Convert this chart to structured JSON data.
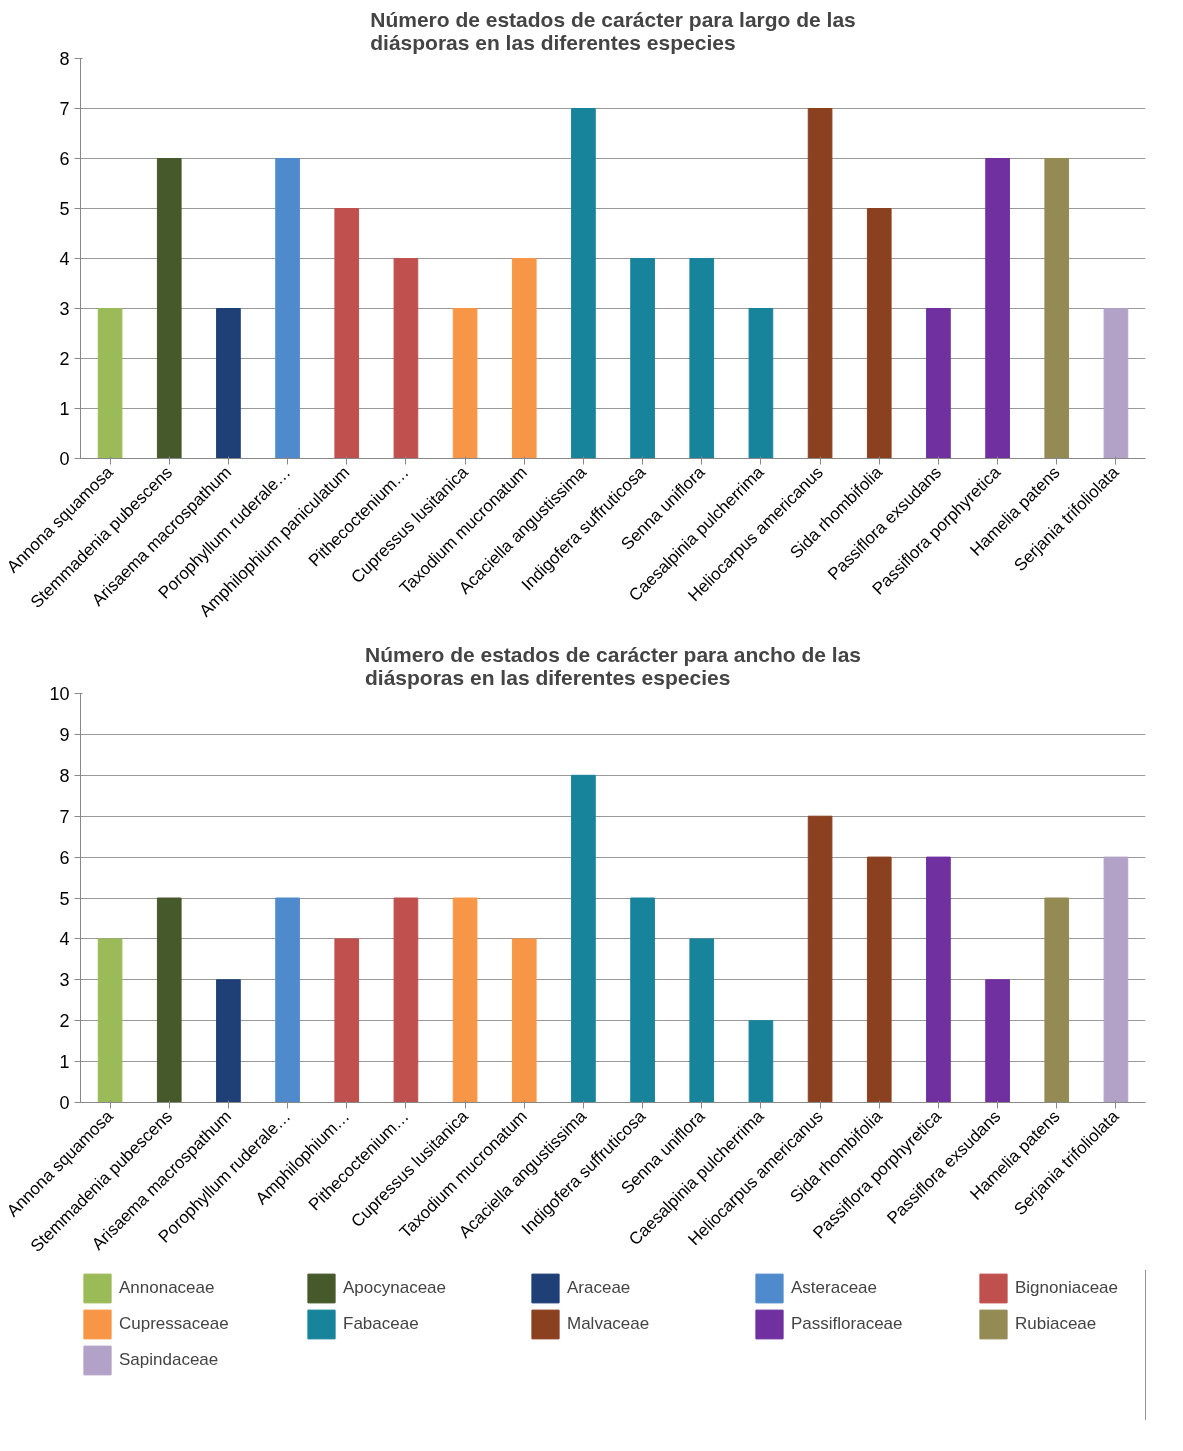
{
  "chart_data": [
    {
      "type": "bar",
      "title": "Número de estados de carácter para largo de las diásporas en las diferentes especies",
      "categories": [
        "Annona squamosa",
        "Stemmadenia pubescens",
        "Arisaema macrospathum",
        "Porophyllum ruderale…",
        "Amphilophium paniculatum",
        "Pithecoctenium…",
        "Cupressus lusitanica",
        "Taxodium mucronatum",
        "Acaciella angustissima",
        "Indigofera suffruticosa",
        "Senna uniflora",
        "Caesalpinia pulcherrima",
        "Heliocarpus americanus",
        "Sida rhombifolia",
        "Passiflora exsudans",
        "Passiflora porphyretica",
        "Hamelia patens",
        "Serjania trifoliolata"
      ],
      "ylim": [
        0,
        8
      ],
      "yticks": [
        0,
        1,
        2,
        3,
        4,
        5,
        6,
        7,
        8
      ],
      "grid": "y",
      "series": [
        {
          "color": "#9bbb59",
          "values": [
            3,
            null,
            null,
            null,
            null,
            null,
            null,
            null,
            null,
            null,
            null,
            null,
            null,
            null,
            null,
            null,
            null,
            null
          ]
        },
        {
          "color": "#46592a",
          "values": [
            null,
            6,
            null,
            null,
            null,
            null,
            null,
            null,
            null,
            null,
            null,
            null,
            null,
            null,
            null,
            null,
            null,
            null
          ]
        },
        {
          "color": "#1f3f77",
          "values": [
            null,
            null,
            3,
            null,
            null,
            null,
            null,
            null,
            null,
            null,
            null,
            null,
            null,
            null,
            null,
            null,
            null,
            null
          ]
        },
        {
          "color": "#4f8bcc",
          "values": [
            null,
            null,
            null,
            6,
            null,
            null,
            null,
            null,
            null,
            null,
            null,
            null,
            null,
            null,
            null,
            null,
            null,
            null
          ]
        },
        {
          "color": "#c0504d",
          "values": [
            null,
            null,
            null,
            null,
            5,
            4,
            null,
            null,
            null,
            null,
            null,
            null,
            null,
            null,
            null,
            null,
            null,
            null
          ]
        },
        {
          "color": "#f79646",
          "values": [
            null,
            null,
            null,
            null,
            null,
            null,
            3,
            4,
            null,
            null,
            null,
            null,
            null,
            null,
            null,
            null,
            null,
            null
          ]
        },
        {
          "color": "#17849c",
          "values": [
            null,
            null,
            null,
            null,
            null,
            null,
            null,
            null,
            7,
            4,
            4,
            3,
            null,
            null,
            null,
            null,
            null,
            null
          ]
        },
        {
          "color": "#8b4020",
          "values": [
            null,
            null,
            null,
            null,
            null,
            null,
            null,
            null,
            null,
            null,
            null,
            null,
            7,
            5,
            null,
            null,
            null,
            null
          ]
        },
        {
          "color": "#7030a0",
          "values": [
            null,
            null,
            null,
            null,
            null,
            null,
            null,
            null,
            null,
            null,
            null,
            null,
            null,
            null,
            3,
            6,
            null,
            null
          ]
        },
        {
          "color": "#948a54",
          "values": [
            null,
            null,
            null,
            null,
            null,
            null,
            null,
            null,
            null,
            null,
            null,
            null,
            null,
            null,
            null,
            null,
            6,
            null
          ]
        },
        {
          "color": "#b3a2c7",
          "values": [
            null,
            null,
            null,
            null,
            null,
            null,
            null,
            null,
            null,
            null,
            null,
            null,
            null,
            null,
            null,
            null,
            null,
            3
          ]
        }
      ]
    },
    {
      "type": "bar",
      "title": "Número de estados de carácter para ancho de las diásporas en las diferentes especies",
      "categories": [
        "Annona squamosa",
        "Stemmadenia pubescens",
        "Arisaema macrospathum",
        "Porophyllum ruderale…",
        "Amphilophium…",
        "Pithecoctenium…",
        "Cupressus lusitanica",
        "Taxodium mucronatum",
        "Acaciella angustissima",
        "Indigofera suffruticosa",
        "Senna uniflora",
        "Caesalpinia pulcherrima",
        "Heliocarpus americanus",
        "Sida rhombifolia",
        "Passiflora porphyretica",
        "Passiflora exsudans",
        "Hamelia patens",
        "Serjania trifoliolata"
      ],
      "ylim": [
        0,
        10
      ],
      "yticks": [
        0,
        1,
        2,
        3,
        4,
        5,
        6,
        7,
        8,
        9,
        10
      ],
      "grid": "y",
      "legend": "bottom",
      "series": [
        {
          "name": "Annonaceae",
          "color": "#9bbb59",
          "values": [
            4,
            null,
            null,
            null,
            null,
            null,
            null,
            null,
            null,
            null,
            null,
            null,
            null,
            null,
            null,
            null,
            null,
            null
          ]
        },
        {
          "name": "Apocynaceae",
          "color": "#46592a",
          "values": [
            null,
            5,
            null,
            null,
            null,
            null,
            null,
            null,
            null,
            null,
            null,
            null,
            null,
            null,
            null,
            null,
            null,
            null
          ]
        },
        {
          "name": "Araceae",
          "color": "#1f3f77",
          "values": [
            null,
            null,
            3,
            null,
            null,
            null,
            null,
            null,
            null,
            null,
            null,
            null,
            null,
            null,
            null,
            null,
            null,
            null
          ]
        },
        {
          "name": "Asteraceae",
          "color": "#4f8bcc",
          "values": [
            null,
            null,
            null,
            5,
            null,
            null,
            null,
            null,
            null,
            null,
            null,
            null,
            null,
            null,
            null,
            null,
            null,
            null
          ]
        },
        {
          "name": "Bignoniaceae",
          "color": "#c0504d",
          "values": [
            null,
            null,
            null,
            null,
            4,
            5,
            null,
            null,
            null,
            null,
            null,
            null,
            null,
            null,
            null,
            null,
            null,
            null
          ]
        },
        {
          "name": "Cupressaceae",
          "color": "#f79646",
          "values": [
            null,
            null,
            null,
            null,
            null,
            null,
            5,
            4,
            null,
            null,
            null,
            null,
            null,
            null,
            null,
            null,
            null,
            null
          ]
        },
        {
          "name": "Fabaceae",
          "color": "#17849c",
          "values": [
            null,
            null,
            null,
            null,
            null,
            null,
            null,
            null,
            8,
            5,
            4,
            2,
            null,
            null,
            null,
            null,
            null,
            null
          ]
        },
        {
          "name": "Malvaceae",
          "color": "#8b4020",
          "values": [
            null,
            null,
            null,
            null,
            null,
            null,
            null,
            null,
            null,
            null,
            null,
            null,
            7,
            6,
            null,
            null,
            null,
            null
          ]
        },
        {
          "name": "Passifloraceae",
          "color": "#7030a0",
          "values": [
            null,
            null,
            null,
            null,
            null,
            null,
            null,
            null,
            null,
            null,
            null,
            null,
            null,
            null,
            6,
            3,
            null,
            null
          ]
        },
        {
          "name": "Rubiaceae",
          "color": "#948a54",
          "values": [
            null,
            null,
            null,
            null,
            null,
            null,
            null,
            null,
            null,
            null,
            null,
            null,
            null,
            null,
            null,
            null,
            5,
            null
          ]
        },
        {
          "name": "Sapindaceae",
          "color": "#b3a2c7",
          "values": [
            null,
            null,
            null,
            null,
            null,
            null,
            null,
            null,
            null,
            null,
            null,
            null,
            null,
            null,
            null,
            null,
            null,
            6
          ]
        }
      ]
    }
  ]
}
